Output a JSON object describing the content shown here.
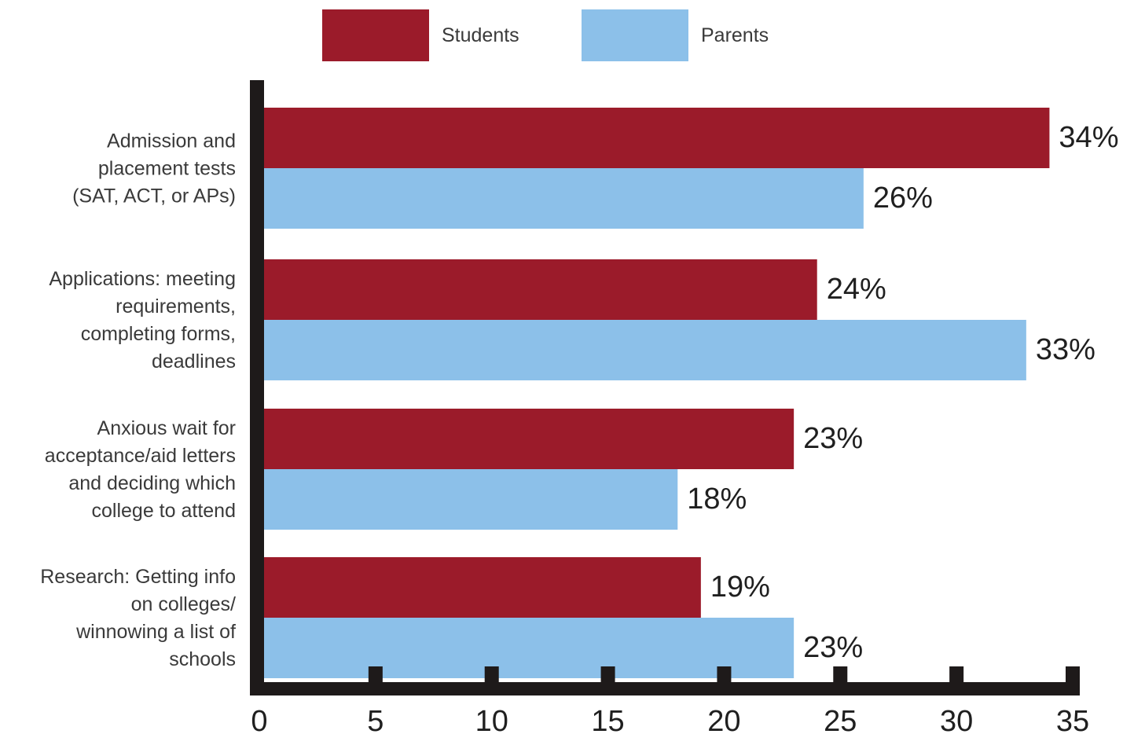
{
  "chart_data": {
    "type": "bar",
    "orientation": "horizontal",
    "categories": [
      [
        "Admission and",
        "placement tests",
        "(SAT, ACT, or APs)"
      ],
      [
        "Applications: meeting",
        "requirements,",
        "completing forms,",
        "deadlines"
      ],
      [
        "Anxious wait for",
        "acceptance/aid letters",
        "and deciding which",
        "college to attend"
      ],
      [
        "Research: Getting info",
        "on colleges/",
        "winnowing a list of",
        "schools"
      ]
    ],
    "series": [
      {
        "name": "Students",
        "color": "#9b1b2a",
        "values": [
          34,
          24,
          23,
          19
        ],
        "labels": [
          "34%",
          "24%",
          "23%",
          "19%"
        ]
      },
      {
        "name": "Parents",
        "color": "#8cc0e9",
        "values": [
          26,
          33,
          18,
          23
        ],
        "labels": [
          "26%",
          "33%",
          "18%",
          "23%"
        ]
      }
    ],
    "xlim": [
      0,
      35
    ],
    "xticks": [
      "0",
      "5",
      "10",
      "15",
      "20",
      "25",
      "30",
      "35"
    ],
    "legend_position": "top-center",
    "grid": false,
    "axis_color": "#1e1a1a"
  }
}
